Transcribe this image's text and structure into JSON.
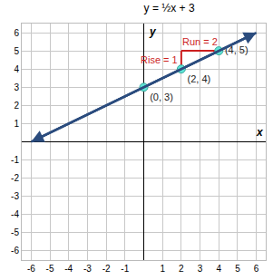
{
  "chart_data": {
    "type": "line",
    "title": "y = ½x + 3",
    "x_label": "x",
    "y_label": "y",
    "xlim": [
      -6.5,
      6.5
    ],
    "ylim": [
      -6.5,
      6.5
    ],
    "xticks": [
      -6,
      -5,
      -4,
      -3,
      -2,
      -1,
      1,
      2,
      3,
      4,
      5,
      6
    ],
    "yticks": [
      -6,
      -5,
      -4,
      -3,
      -2,
      -1,
      1,
      2,
      3,
      4,
      5,
      6
    ],
    "grid": true,
    "line": {
      "x": [
        -6,
        6
      ],
      "values": [
        0,
        6
      ],
      "color": "#2b4c7e",
      "marker": "arrow"
    },
    "points": {
      "x": [
        0,
        2,
        4
      ],
      "values": [
        3,
        4,
        5
      ],
      "labels": [
        "(0, 3)",
        "(2, 4)",
        "(4, 5)"
      ],
      "color": "#5fe3d5"
    },
    "steps": [
      {
        "label": "Rise = 1",
        "x": [
          2,
          2
        ],
        "values": [
          4,
          5
        ],
        "color": "#cc1f1f"
      },
      {
        "label": "Run = 2",
        "x": [
          2,
          4
        ],
        "values": [
          5,
          5
        ],
        "color": "#cc1f1f"
      }
    ]
  }
}
